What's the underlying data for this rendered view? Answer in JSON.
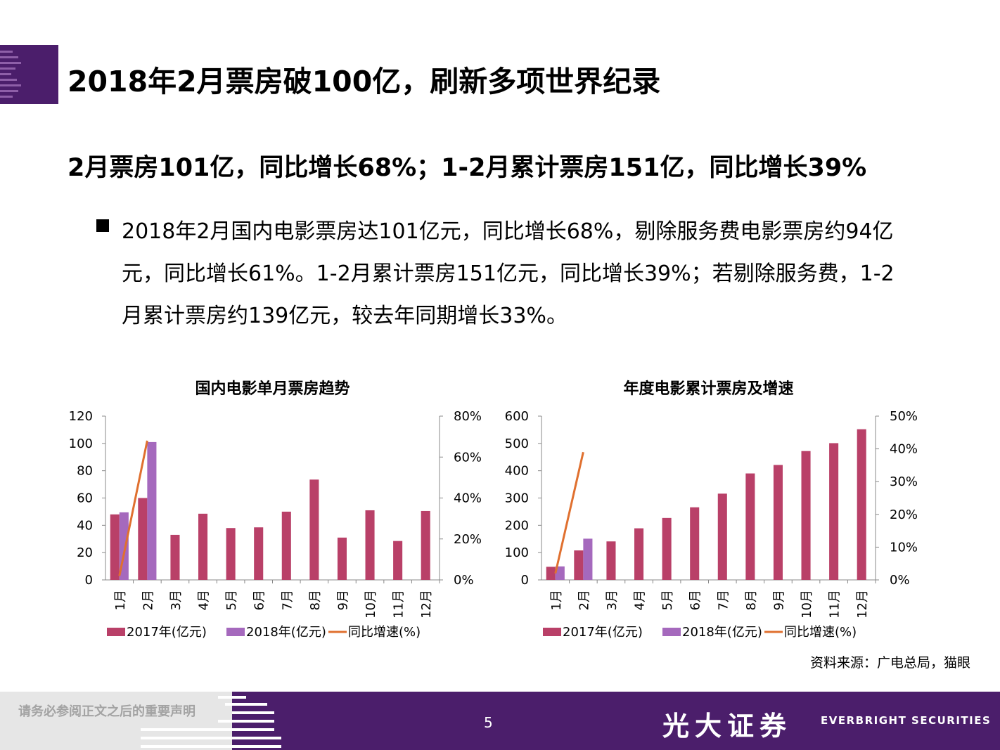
{
  "slide": {
    "title": "2018年2月票房破100亿，刷新多项世界纪录",
    "subtitle": "2月票房101亿，同比增长68%；1-2月累计票房151亿，同比增长39%",
    "bullet_text": "2018年2月国内电影票房达101亿元，同比增长68%，剔除服务费电影票房约94亿元，同比增长61%。1-2月累计票房151亿元，同比增长39%；若剔除服务费，1-2月累计票房约139亿元，较去年同期增长33%。",
    "source": "资料来源：广电总局，猫眼"
  },
  "footer": {
    "disclaimer": "请务必参阅正文之后的重要声明",
    "page_number": "5",
    "brand_cn": "光大证券",
    "brand_en": "EVERBRIGHT SECURITIES"
  },
  "colors": {
    "series_2017": "#b94068",
    "series_2018": "#a569bd",
    "growth_line": "#e0702f",
    "brand_purple": "#4b1e6b"
  },
  "chart_data": [
    {
      "type": "bar",
      "title": "国内电影单月票房趋势",
      "categories": [
        "1月",
        "2月",
        "3月",
        "4月",
        "5月",
        "6月",
        "7月",
        "8月",
        "9月",
        "10月",
        "11月",
        "12月"
      ],
      "series": [
        {
          "name": "2017年(亿元)",
          "kind": "bar",
          "axis": "left",
          "values": [
            48,
            60,
            33,
            48.5,
            38,
            38.5,
            50,
            73.5,
            31,
            51,
            28.5,
            50.5
          ]
        },
        {
          "name": "2018年(亿元)",
          "kind": "bar",
          "axis": "left",
          "values": [
            49.5,
            101,
            null,
            null,
            null,
            null,
            null,
            null,
            null,
            null,
            null,
            null
          ]
        },
        {
          "name": "同比增速(%)",
          "kind": "line",
          "axis": "right",
          "values": [
            2,
            68,
            null,
            null,
            null,
            null,
            null,
            null,
            null,
            null,
            null,
            null
          ]
        }
      ],
      "ylim_left": [
        0,
        120
      ],
      "yticks_left": [
        "0",
        "20",
        "40",
        "60",
        "80",
        "100",
        "120"
      ],
      "ylim_right": [
        0,
        80
      ],
      "yticks_right": [
        "0%",
        "20%",
        "40%",
        "60%",
        "80%"
      ],
      "legend": "bottom"
    },
    {
      "type": "bar",
      "title": "年度电影累计票房及增速",
      "categories": [
        "1月",
        "2月",
        "3月",
        "4月",
        "5月",
        "6月",
        "7月",
        "8月",
        "9月",
        "10月",
        "11月",
        "12月"
      ],
      "series": [
        {
          "name": "2017年(亿元)",
          "kind": "bar",
          "axis": "left",
          "values": [
            48,
            108,
            141,
            189,
            227,
            266,
            316,
            390,
            421,
            472,
            501,
            552
          ]
        },
        {
          "name": "2018年(亿元)",
          "kind": "bar",
          "axis": "left",
          "values": [
            49.5,
            151,
            null,
            null,
            null,
            null,
            null,
            null,
            null,
            null,
            null,
            null
          ]
        },
        {
          "name": "同比增速(%)",
          "kind": "line",
          "axis": "right",
          "values": [
            2,
            39,
            null,
            null,
            null,
            null,
            null,
            null,
            null,
            null,
            null,
            null
          ]
        }
      ],
      "ylim_left": [
        0,
        600
      ],
      "yticks_left": [
        "0",
        "100",
        "200",
        "300",
        "400",
        "500",
        "600"
      ],
      "ylim_right": [
        0,
        50
      ],
      "yticks_right": [
        "0%",
        "10%",
        "20%",
        "30%",
        "40%",
        "50%"
      ],
      "legend": "bottom"
    }
  ]
}
